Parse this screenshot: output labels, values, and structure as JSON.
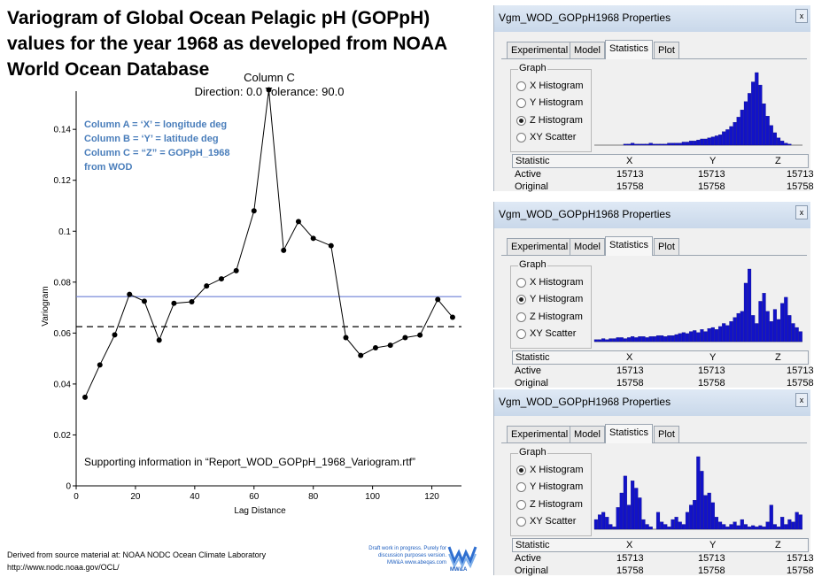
{
  "slide": {
    "title_lines": [
      "Variogram of Global Ocean Pelagic pH (GOPpH)",
      "values for the year 1968 as developed from NOAA",
      "World Ocean Database"
    ],
    "legend_lines": [
      "Column A = ‘X’  = longitude deg",
      "Column B = ‘Y’ = latitude deg",
      "Column C = “Z” =    GOPpH_1968",
      "from WOD"
    ],
    "support_note": "Supporting information in “Report_WOD_GOPpH_1968_Variogram.rtf”",
    "footer_lines": [
      "Derived from source material at: NOAA NODC Ocean Climate Laboratory",
      "http://www.nodc.noaa.gov/OCL/"
    ],
    "draft_lines": [
      "Draft work in progress.  Purely for",
      "discussion purposes version.",
      "MW&A www.abeqas.com"
    ],
    "logo_text": "MW&A",
    "accent_color": "#4a7ebb"
  },
  "chart_data": {
    "type": "line",
    "title": "Column C",
    "subtitle": "Direction: 0.0   Tolerance: 90.0",
    "xlabel": "Lag Distance",
    "ylabel": "Variogram",
    "xlim": [
      0,
      130
    ],
    "ylim": [
      0,
      0.155
    ],
    "x_ticks": [
      0,
      20,
      40,
      60,
      80,
      100,
      120
    ],
    "y_ticks": [
      0,
      0.02,
      0.04,
      0.06,
      0.08,
      0.1,
      0.12,
      0.14
    ],
    "x_tick_labels": [
      "0",
      "20",
      "40",
      "60",
      "80",
      "100",
      "120"
    ],
    "y_tick_labels": [
      "0",
      "0.02",
      "0.04",
      "0.06",
      "0.08",
      "0.1",
      "0.12",
      "0.14"
    ],
    "series": [
      {
        "x": [
          3,
          8,
          13,
          18,
          23,
          28,
          33,
          39,
          44,
          49,
          54,
          60,
          65,
          70,
          75,
          80,
          86,
          91,
          96,
          101,
          106,
          111,
          116,
          122,
          127
        ],
        "y": [
          0.0348,
          0.0475,
          0.0593,
          0.0752,
          0.0725,
          0.0572,
          0.0717,
          0.0723,
          0.0785,
          0.0813,
          0.0845,
          0.108,
          0.1555,
          0.0925,
          0.1038,
          0.0972,
          0.0943,
          0.0582,
          0.0512,
          0.0542,
          0.0552,
          0.0582,
          0.0592,
          0.0732,
          0.0662
        ]
      }
    ],
    "reference_lines": [
      {
        "y": 0.0743,
        "style": "solid",
        "color": "#6c7fd6"
      },
      {
        "y": 0.0625,
        "style": "dashed",
        "color": "#000000"
      }
    ],
    "grid": false
  },
  "dialogs": [
    {
      "title": "Vgm_WOD_GOPpH1968 Properties",
      "close": "x",
      "tabs": [
        "Experimental",
        "Model",
        "Statistics",
        "Plot"
      ],
      "active_tab": "Statistics",
      "group_label": "Graph",
      "options": [
        "X Histogram",
        "Y Histogram",
        "Z Histogram",
        "XY Scatter"
      ],
      "selected": 2,
      "histogram": [
        0,
        0,
        0,
        0,
        0,
        0,
        0,
        0,
        1,
        1,
        2,
        1,
        1,
        1,
        1,
        2,
        1,
        1,
        1,
        1,
        2,
        2,
        2,
        2,
        3,
        3,
        4,
        4,
        5,
        6,
        6,
        7,
        8,
        9,
        10,
        13,
        15,
        18,
        22,
        27,
        34,
        42,
        50,
        61,
        70,
        58,
        40,
        28,
        19,
        12,
        7,
        4,
        2,
        1,
        0,
        0,
        0
      ],
      "stat_headers": [
        "Statistic",
        "X",
        "Y",
        "Z"
      ],
      "stat_rows": [
        {
          "label": "Active",
          "x": "15713",
          "y": "15713",
          "z": "15713"
        },
        {
          "label": "Original",
          "x": "15758",
          "y": "15758",
          "z": "15758"
        }
      ]
    },
    {
      "title": "Vgm_WOD_GOPpH1968 Properties",
      "close": "x",
      "tabs": [
        "Experimental",
        "Model",
        "Statistics",
        "Plot"
      ],
      "active_tab": "Statistics",
      "group_label": "Graph",
      "options": [
        "X Histogram",
        "Y Histogram",
        "Z Histogram",
        "XY Scatter"
      ],
      "selected": 1,
      "histogram": [
        2,
        2,
        3,
        2,
        3,
        3,
        4,
        4,
        3,
        4,
        5,
        4,
        5,
        5,
        4,
        5,
        5,
        6,
        6,
        5,
        6,
        6,
        7,
        8,
        9,
        8,
        10,
        11,
        9,
        12,
        10,
        13,
        14,
        12,
        15,
        18,
        16,
        20,
        24,
        28,
        30,
        58,
        72,
        26,
        18,
        40,
        48,
        30,
        20,
        32,
        22,
        38,
        44,
        26,
        18,
        14,
        10
      ],
      "stat_headers": [
        "Statistic",
        "X",
        "Y",
        "Z"
      ],
      "stat_rows": [
        {
          "label": "Active",
          "x": "15713",
          "y": "15713",
          "z": "15713"
        },
        {
          "label": "Original",
          "x": "15758",
          "y": "15758",
          "z": "15758"
        }
      ]
    },
    {
      "title": "Vgm_WOD_GOPpH1968 Properties",
      "close": "x",
      "tabs": [
        "Experimental",
        "Model",
        "Statistics",
        "Plot"
      ],
      "active_tab": "Statistics",
      "group_label": "Graph",
      "options": [
        "X Histogram",
        "Y Histogram",
        "Z Histogram",
        "XY Scatter"
      ],
      "selected": 0,
      "histogram": [
        8,
        12,
        14,
        10,
        4,
        2,
        18,
        30,
        44,
        20,
        40,
        34,
        26,
        8,
        4,
        2,
        0,
        14,
        6,
        4,
        2,
        8,
        10,
        6,
        4,
        14,
        20,
        24,
        60,
        48,
        28,
        30,
        22,
        10,
        6,
        4,
        2,
        4,
        6,
        3,
        8,
        4,
        2,
        3,
        2,
        3,
        2,
        6,
        20,
        4,
        2,
        10,
        4,
        8,
        6,
        14,
        12
      ],
      "stat_headers": [
        "Statistic",
        "X",
        "Y",
        "Z"
      ],
      "stat_rows": [
        {
          "label": "Active",
          "x": "15713",
          "y": "15713",
          "z": "15713"
        },
        {
          "label": "Original",
          "x": "15758",
          "y": "15758",
          "z": "15758"
        }
      ]
    }
  ]
}
